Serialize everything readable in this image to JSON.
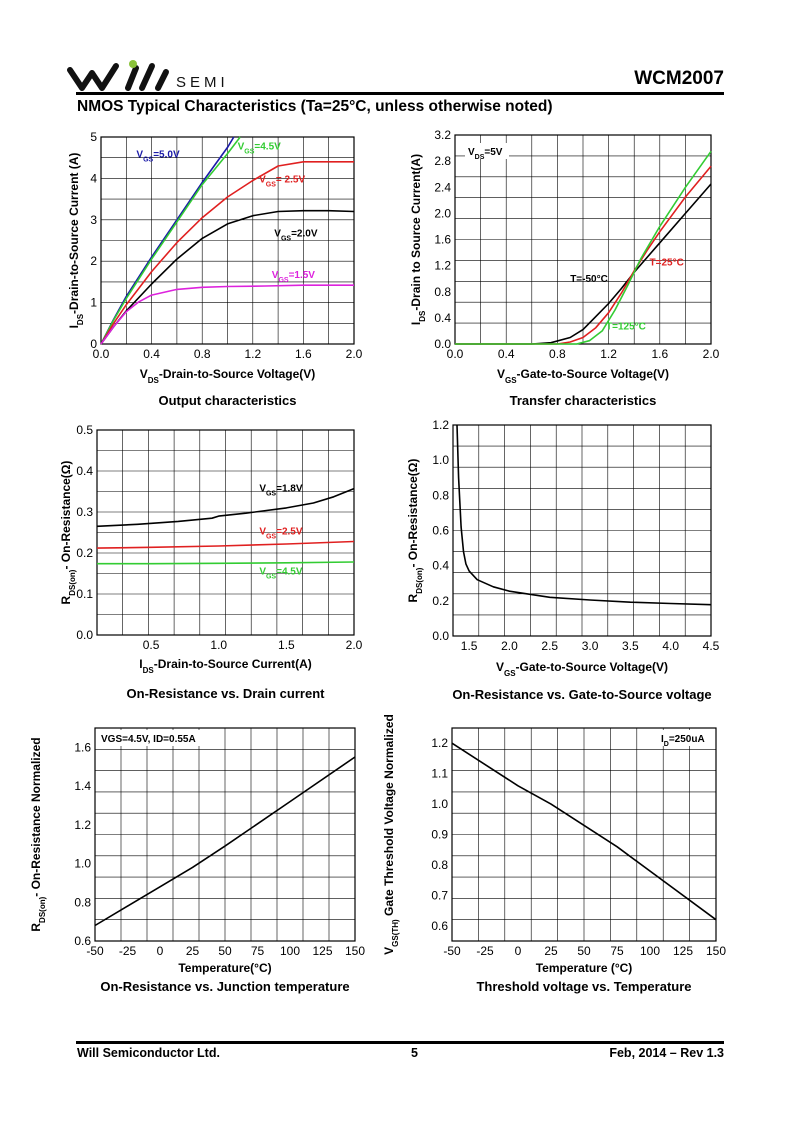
{
  "header": {
    "logo_text": "SEMI",
    "logo_wordmark": "Will",
    "part_number": "WCM2007",
    "section_title": "NMOS Typical Characteristics (Ta=25°C, unless otherwise noted)"
  },
  "footer": {
    "company": "Will Semiconductor Ltd.",
    "page": "5",
    "revision": "Feb, 2014 – Rev 1.3"
  },
  "colors": {
    "black": "#000000",
    "red": "#e02020",
    "green": "#33cc33",
    "magenta": "#dd22dd",
    "blue": "#1a1aa8"
  },
  "chart_data": [
    {
      "id": "output",
      "type": "line",
      "title": "Output characteristics",
      "xlabel": "V_DS-Drain-to-Source Voltage(V)",
      "ylabel": "I_DS-Drain-to-Source Current (A)",
      "xlim": [
        0,
        2.0
      ],
      "ylim": [
        0,
        5
      ],
      "xticks": [
        0.0,
        0.4,
        0.8,
        1.2,
        1.6,
        2.0
      ],
      "xtick_labels": [
        "0.0",
        "0.4",
        "0.8",
        "1.2",
        "1.6",
        "2.0"
      ],
      "yticks": [
        0,
        1,
        2,
        3,
        4,
        5
      ],
      "ytick_labels": [
        "0",
        "1",
        "2",
        "3",
        "4",
        "5"
      ],
      "grid": true,
      "series": [
        {
          "name": "V_GS=5.0V",
          "color": "blue",
          "x": [
            0,
            0.1,
            0.2,
            0.4,
            0.6,
            0.8,
            1.0,
            1.05
          ],
          "y": [
            0,
            0.6,
            1.15,
            2.1,
            3.0,
            3.9,
            4.75,
            5.0
          ],
          "label_pos": [
            0.28,
            4.5
          ]
        },
        {
          "name": "V_GS=4.5V",
          "color": "green",
          "x": [
            0,
            0.1,
            0.2,
            0.4,
            0.6,
            0.8,
            1.0,
            1.1
          ],
          "y": [
            0,
            0.58,
            1.1,
            2.05,
            2.95,
            3.85,
            4.6,
            5.0
          ],
          "label_pos": [
            1.08,
            4.7
          ]
        },
        {
          "name": "V_GS= 2.5V",
          "color": "red",
          "x": [
            0,
            0.1,
            0.2,
            0.4,
            0.6,
            0.8,
            1.0,
            1.2,
            1.4,
            1.6,
            2.0
          ],
          "y": [
            0,
            0.5,
            0.95,
            1.75,
            2.45,
            3.05,
            3.55,
            3.95,
            4.3,
            4.4,
            4.4
          ],
          "label_pos": [
            1.25,
            3.9
          ]
        },
        {
          "name": "V_GS=2.0V",
          "color": "black",
          "x": [
            0,
            0.1,
            0.2,
            0.4,
            0.6,
            0.8,
            1.0,
            1.2,
            1.4,
            1.6,
            1.8,
            2.0
          ],
          "y": [
            0,
            0.42,
            0.8,
            1.45,
            2.05,
            2.55,
            2.9,
            3.1,
            3.2,
            3.22,
            3.22,
            3.2
          ],
          "label_pos": [
            1.37,
            2.6
          ]
        },
        {
          "name": "V_GS=1.5V",
          "color": "magenta",
          "x": [
            0,
            0.1,
            0.2,
            0.3,
            0.4,
            0.6,
            0.8,
            1.0,
            1.3,
            1.6,
            2.0
          ],
          "y": [
            0,
            0.42,
            0.78,
            1.02,
            1.18,
            1.32,
            1.37,
            1.39,
            1.4,
            1.42,
            1.42
          ],
          "label_pos": [
            1.35,
            1.6
          ]
        }
      ]
    },
    {
      "id": "transfer",
      "type": "line",
      "title": "Transfer characteristics",
      "xlabel": "V_GS-Gate-to-Source Voltage(V)",
      "ylabel": "I_DS-Drain to Source Current(A)",
      "xlim": [
        0,
        2.0
      ],
      "ylim": [
        0,
        3.2
      ],
      "xticks": [
        0.0,
        0.4,
        0.8,
        1.2,
        1.6,
        2.0
      ],
      "xtick_labels": [
        "0.0",
        "0.4",
        "0.8",
        "1.2",
        "1.6",
        "2.0"
      ],
      "yticks": [
        0.0,
        0.4,
        0.8,
        1.2,
        1.6,
        2.0,
        2.4,
        2.8,
        3.2
      ],
      "ytick_labels": [
        "0.0",
        "0.4",
        "0.8",
        "1.2",
        "1.6",
        "2.0",
        "2.4",
        "2.8",
        "3.2"
      ],
      "grid": true,
      "inset_label": "V_DS=5V",
      "series": [
        {
          "name": "T=-50°C",
          "color": "black",
          "x": [
            0,
            0.6,
            0.75,
            0.9,
            1.0,
            1.1,
            1.2,
            1.3,
            1.4,
            1.6,
            1.8,
            2.0
          ],
          "y": [
            0,
            0,
            0.02,
            0.1,
            0.22,
            0.42,
            0.62,
            0.85,
            1.1,
            1.55,
            2.0,
            2.45
          ],
          "label_pos": [
            0.9,
            0.95
          ]
        },
        {
          "name": "T=25°C",
          "color": "red",
          "x": [
            0,
            0.8,
            0.9,
            1.0,
            1.1,
            1.2,
            1.3,
            1.4,
            1.5,
            1.6,
            1.8,
            2.0
          ],
          "y": [
            0,
            0,
            0.03,
            0.1,
            0.25,
            0.48,
            0.78,
            1.12,
            1.43,
            1.72,
            2.25,
            2.72
          ],
          "label_pos": [
            1.52,
            1.2
          ]
        },
        {
          "name": "T=125°C",
          "color": "green",
          "x": [
            0,
            0.95,
            1.05,
            1.15,
            1.25,
            1.35,
            1.45,
            1.6,
            1.8,
            2.0
          ],
          "y": [
            0,
            0,
            0.05,
            0.2,
            0.52,
            0.9,
            1.3,
            1.8,
            2.4,
            2.95
          ],
          "label_pos": [
            1.18,
            0.22
          ]
        }
      ]
    },
    {
      "id": "ron-vs-id",
      "type": "line",
      "title": "On-Resistance vs. Drain current",
      "xlabel": "I_DS-Drain-to-Source Current(A)",
      "ylabel": "R_DS(on)- On-Resistance(Ω)",
      "xlim": [
        0.1,
        2.0
      ],
      "ylim": [
        0.0,
        0.5
      ],
      "xticks": [
        0.5,
        1.0,
        1.5,
        2.0
      ],
      "xtick_labels": [
        "0.5",
        "1.0",
        "1.5",
        "2.0"
      ],
      "yticks": [
        0.0,
        0.1,
        0.2,
        0.3,
        0.4,
        0.5
      ],
      "ytick_labels": [
        "0.0",
        "0.1",
        "0.2",
        "0.3",
        "0.4",
        "0.5"
      ],
      "grid": true,
      "series": [
        {
          "name": "V_GS=1.8V",
          "color": "black",
          "x": [
            0.1,
            0.4,
            0.7,
            0.95,
            1.0,
            1.2,
            1.5,
            1.7,
            1.85,
            2.0
          ],
          "y": [
            0.265,
            0.27,
            0.277,
            0.285,
            0.29,
            0.297,
            0.31,
            0.322,
            0.337,
            0.357
          ],
          "label_pos": [
            1.3,
            0.35
          ]
        },
        {
          "name": "V_GS=2.5V",
          "color": "red",
          "x": [
            0.1,
            0.5,
            1.0,
            1.5,
            2.0
          ],
          "y": [
            0.212,
            0.214,
            0.217,
            0.222,
            0.228
          ],
          "label_pos": [
            1.3,
            0.245
          ]
        },
        {
          "name": "V_GS=4.5V",
          "color": "green",
          "x": [
            0.1,
            0.5,
            1.0,
            1.5,
            2.0
          ],
          "y": [
            0.174,
            0.174,
            0.175,
            0.176,
            0.178
          ],
          "label_pos": [
            1.3,
            0.148
          ]
        }
      ]
    },
    {
      "id": "ron-vs-vgs",
      "type": "line",
      "title": "On-Resistance vs. Gate-to-Source voltage",
      "xlabel": "V_GS-Gate-to-Source Voltage(V)",
      "ylabel": "R_DS(on)- On-Resistance(Ω)",
      "xlim": [
        1.3,
        4.5
      ],
      "ylim": [
        0.0,
        1.2
      ],
      "xticks": [
        1.5,
        2.0,
        2.5,
        3.0,
        3.5,
        4.0,
        4.5
      ],
      "xtick_labels": [
        "1.5",
        "2.0",
        "2.5",
        "3.0",
        "3.5",
        "4.0",
        "4.5"
      ],
      "yticks": [
        0.0,
        0.2,
        0.4,
        0.6,
        0.8,
        1.0,
        1.2
      ],
      "ytick_labels": [
        "0.0",
        "0.2",
        "0.4",
        "0.6",
        "0.8",
        "1.0",
        "1.2"
      ],
      "grid": true,
      "series": [
        {
          "name": "",
          "color": "black",
          "x": [
            1.35,
            1.37,
            1.4,
            1.43,
            1.46,
            1.5,
            1.6,
            1.8,
            2.0,
            2.5,
            3.0,
            3.5,
            4.0,
            4.5
          ],
          "y": [
            1.2,
            0.9,
            0.62,
            0.48,
            0.41,
            0.37,
            0.32,
            0.28,
            0.255,
            0.22,
            0.205,
            0.192,
            0.185,
            0.178
          ]
        }
      ]
    },
    {
      "id": "ron-vs-temp",
      "type": "line",
      "title": "On-Resistance vs. Junction temperature",
      "xlabel": "Temperature(°C)",
      "ylabel": "R_DS(on)- On-Resistance Normalized",
      "xlim": [
        -50,
        150
      ],
      "ylim": [
        0.6,
        1.7
      ],
      "xticks": [
        -50,
        -25,
        0,
        25,
        50,
        75,
        100,
        125,
        150
      ],
      "xtick_labels": [
        "-50",
        "-25",
        "0",
        "25",
        "50",
        "75",
        "100",
        "125",
        "150"
      ],
      "yticks": [
        0.6,
        0.8,
        1.0,
        1.2,
        1.4,
        1.6
      ],
      "ytick_labels": [
        "0.6",
        "0.8",
        "1.0",
        "1.2",
        "1.4",
        "1.6"
      ],
      "grid": true,
      "inset_label": "VGS=4.5V,  ID=0.55A",
      "series": [
        {
          "name": "",
          "color": "black",
          "x": [
            -50,
            0,
            25,
            50,
            100,
            150
          ],
          "y": [
            0.68,
            0.88,
            0.98,
            1.09,
            1.32,
            1.55
          ]
        }
      ]
    },
    {
      "id": "vth-vs-temp",
      "type": "line",
      "title": "Threshold voltage vs. Temperature",
      "xlabel": "Temperature (°C)",
      "ylabel": "V_GS(TH) Gate Threshold Voltage Normalized",
      "xlim": [
        -50,
        150
      ],
      "ylim": [
        0.55,
        1.25
      ],
      "xticks": [
        -50,
        -25,
        0,
        25,
        50,
        75,
        100,
        125,
        150
      ],
      "xtick_labels": [
        "-50",
        "-25",
        "0",
        "25",
        "50",
        "75",
        "100",
        "125",
        "150"
      ],
      "yticks": [
        0.6,
        0.7,
        0.8,
        0.9,
        1.0,
        1.1,
        1.2
      ],
      "ytick_labels": [
        "0.6",
        "0.7",
        "0.8",
        "0.9",
        "1.0",
        "1.1",
        "1.2"
      ],
      "grid": true,
      "inset_label": "I_D=250uA",
      "series": [
        {
          "name": "",
          "color": "black",
          "x": [
            -50,
            0,
            25,
            75,
            150
          ],
          "y": [
            1.2,
            1.06,
            1.0,
            0.86,
            0.62
          ]
        }
      ]
    }
  ]
}
